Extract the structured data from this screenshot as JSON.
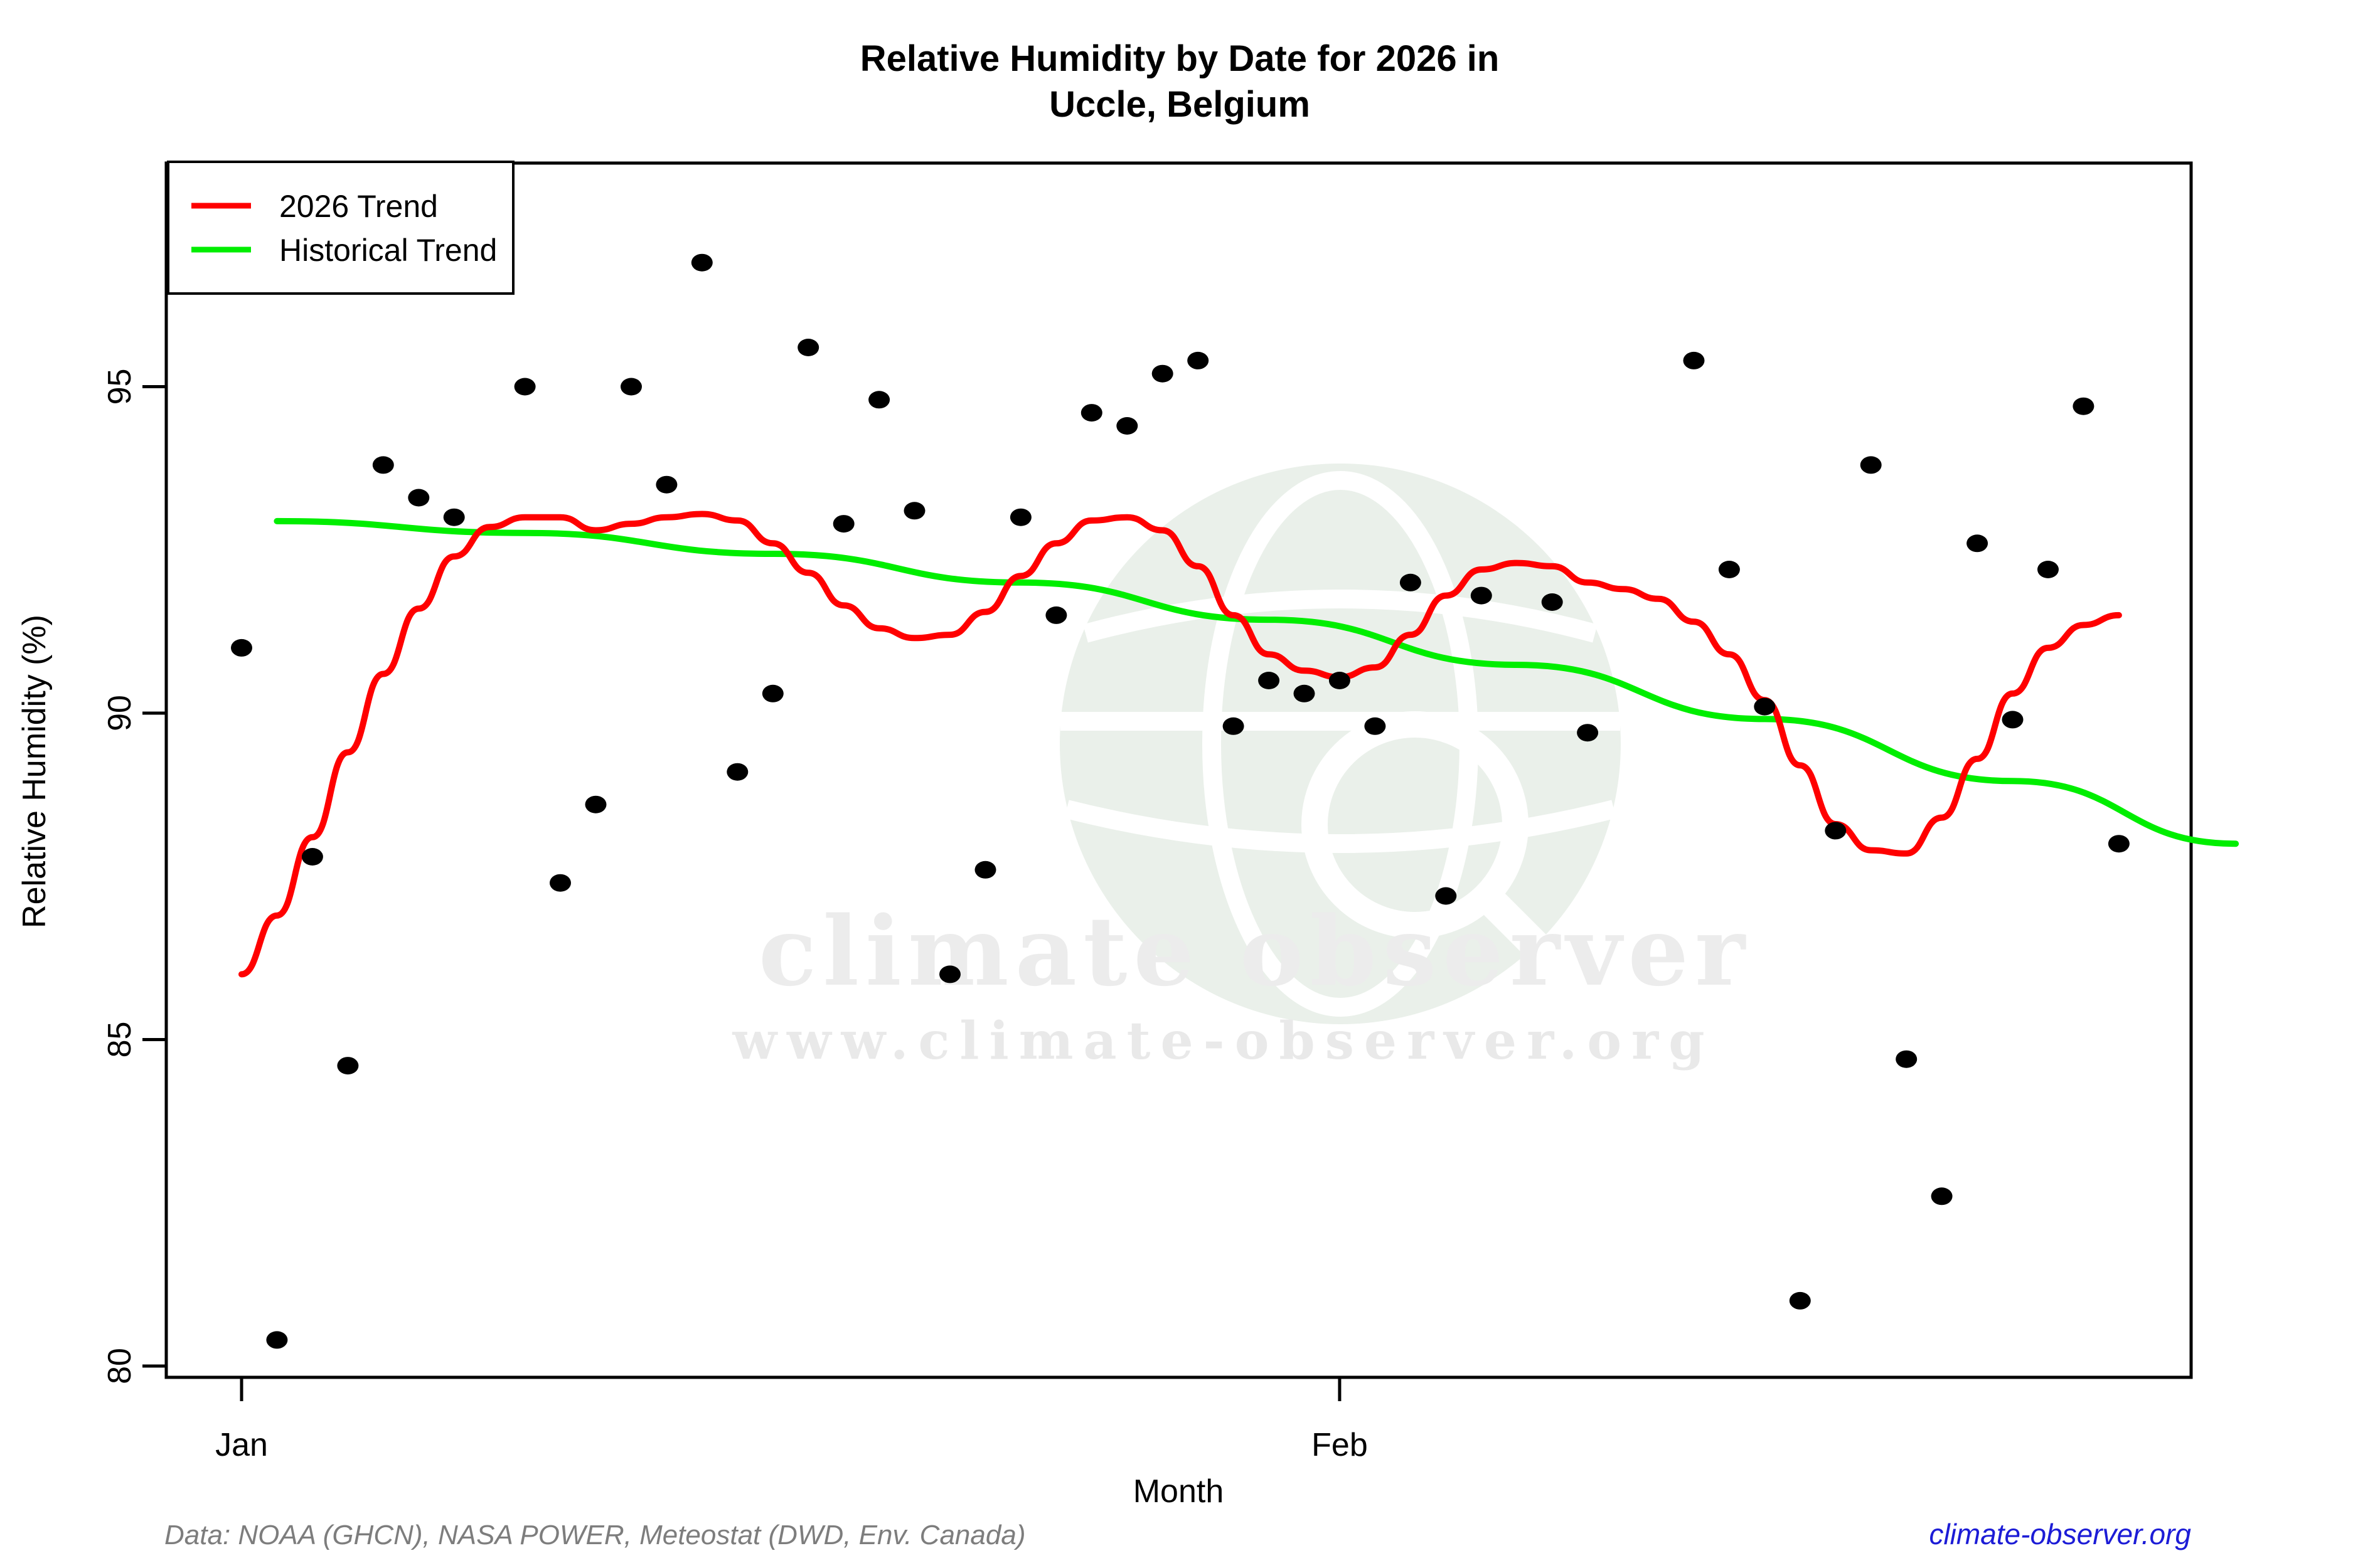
{
  "title": {
    "line1": "Relative Humidity by Date for 2026 in",
    "line2": "Uccle, Belgium"
  },
  "legend": {
    "items": [
      {
        "label": "2026 Trend",
        "color": "#ff0000"
      },
      {
        "label": "Historical Trend",
        "color": "#00ee00"
      }
    ]
  },
  "watermark": {
    "big_text": "climate observer",
    "small_text": "www.climate-observer.org",
    "globe_icon": "globe-magnifier-icon"
  },
  "footer": {
    "data_source": "Data: NOAA (GHCN), NASA POWER, Meteostat (DWD, Env. Canada)",
    "site_link": "climate-observer.org"
  },
  "chart_data": {
    "type": "scatter",
    "title": "Relative Humidity by Date for 2026 in Uccle, Belgium",
    "xlabel": "Month",
    "ylabel": "Relative Humidity (%)",
    "x_ticks": [
      {
        "label": "Jan",
        "day": 1
      },
      {
        "label": "Feb",
        "day": 32
      }
    ],
    "y_ticks": [
      80,
      85,
      90,
      95
    ],
    "ylim": [
      79.8,
      98.4
    ],
    "xlim_days": [
      -1.25,
      57.3
    ],
    "grid": false,
    "legend_position": "topleft",
    "point_color": "#000000",
    "series": [
      {
        "name": "Daily Relative Humidity 2026",
        "points": [
          {
            "day": 1,
            "date": "Jan 1",
            "value": 91.0
          },
          {
            "day": 2,
            "date": "Jan 2",
            "value": 80.4
          },
          {
            "day": 3,
            "date": "Jan 3",
            "value": 87.8
          },
          {
            "day": 4,
            "date": "Jan 4",
            "value": 84.6
          },
          {
            "day": 5,
            "date": "Jan 5",
            "value": 93.8
          },
          {
            "day": 6,
            "date": "Jan 6",
            "value": 93.3
          },
          {
            "day": 7,
            "date": "Jan 7",
            "value": 93.0
          },
          {
            "day": 9,
            "date": "Jan 9",
            "value": 95.0
          },
          {
            "day": 10,
            "date": "Jan 10",
            "value": 87.4
          },
          {
            "day": 11,
            "date": "Jan 11",
            "value": 88.6
          },
          {
            "day": 12,
            "date": "Jan 12",
            "value": 95.0
          },
          {
            "day": 13,
            "date": "Jan 13",
            "value": 93.5
          },
          {
            "day": 14,
            "date": "Jan 14",
            "value": 96.9
          },
          {
            "day": 15,
            "date": "Jan 15",
            "value": 89.1
          },
          {
            "day": 16,
            "date": "Jan 16",
            "value": 90.3
          },
          {
            "day": 17,
            "date": "Jan 17",
            "value": 95.6
          },
          {
            "day": 18,
            "date": "Jan 18",
            "value": 92.9
          },
          {
            "day": 19,
            "date": "Jan 19",
            "value": 94.8
          },
          {
            "day": 20,
            "date": "Jan 20",
            "value": 93.1
          },
          {
            "day": 21,
            "date": "Jan 21",
            "value": 86.0
          },
          {
            "day": 22,
            "date": "Jan 22",
            "value": 87.6
          },
          {
            "day": 23,
            "date": "Jan 23",
            "value": 93.0
          },
          {
            "day": 24,
            "date": "Jan 24",
            "value": 91.5
          },
          {
            "day": 25,
            "date": "Jan 25",
            "value": 94.6
          },
          {
            "day": 26,
            "date": "Jan 26",
            "value": 94.4
          },
          {
            "day": 27,
            "date": "Jan 27",
            "value": 95.2
          },
          {
            "day": 28,
            "date": "Jan 28",
            "value": 95.4
          },
          {
            "day": 29,
            "date": "Jan 29",
            "value": 89.8
          },
          {
            "day": 30,
            "date": "Jan 30",
            "value": 90.5
          },
          {
            "day": 31,
            "date": "Jan 31",
            "value": 90.3
          },
          {
            "day": 32,
            "date": "Feb 1",
            "value": 90.5
          },
          {
            "day": 33,
            "date": "Feb 2",
            "value": 89.8
          },
          {
            "day": 34,
            "date": "Feb 3",
            "value": 92.0
          },
          {
            "day": 35,
            "date": "Feb 4",
            "value": 87.2
          },
          {
            "day": 36,
            "date": "Feb 5",
            "value": 91.8
          },
          {
            "day": 38,
            "date": "Feb 7",
            "value": 91.7
          },
          {
            "day": 39,
            "date": "Feb 8",
            "value": 89.7
          },
          {
            "day": 42,
            "date": "Feb 11",
            "value": 95.4
          },
          {
            "day": 43,
            "date": "Feb 12",
            "value": 92.2
          },
          {
            "day": 44,
            "date": "Feb 13",
            "value": 90.1
          },
          {
            "day": 45,
            "date": "Feb 14",
            "value": 81.0
          },
          {
            "day": 46,
            "date": "Feb 15",
            "value": 88.2
          },
          {
            "day": 47,
            "date": "Feb 16",
            "value": 93.8
          },
          {
            "day": 48,
            "date": "Feb 17",
            "value": 84.7
          },
          {
            "day": 49,
            "date": "Feb 18",
            "value": 82.6
          },
          {
            "day": 50,
            "date": "Feb 19",
            "value": 92.6
          },
          {
            "day": 51,
            "date": "Feb 20",
            "value": 89.9
          },
          {
            "day": 52,
            "date": "Feb 21",
            "value": 92.2
          },
          {
            "day": 53,
            "date": "Feb 22",
            "value": 94.7
          },
          {
            "day": 54,
            "date": "Feb 23",
            "value": 88.0
          }
        ]
      }
    ],
    "trend_2026": {
      "name": "2026 Trend",
      "color": "#ff0000",
      "points": [
        [
          1,
          86.0
        ],
        [
          2,
          86.9
        ],
        [
          3,
          88.1
        ],
        [
          4,
          89.4
        ],
        [
          5,
          90.6
        ],
        [
          6,
          91.6
        ],
        [
          7,
          92.4
        ],
        [
          8,
          92.85
        ],
        [
          9,
          93.0
        ],
        [
          10,
          93.0
        ],
        [
          11,
          92.8
        ],
        [
          12,
          92.9
        ],
        [
          13,
          93.0
        ],
        [
          14,
          93.05
        ],
        [
          15,
          92.95
        ],
        [
          16,
          92.6
        ],
        [
          17,
          92.15
        ],
        [
          18,
          91.65
        ],
        [
          19,
          91.3
        ],
        [
          20,
          91.15
        ],
        [
          21,
          91.2
        ],
        [
          22,
          91.55
        ],
        [
          23,
          92.1
        ],
        [
          24,
          92.6
        ],
        [
          25,
          92.95
        ],
        [
          26,
          93.0
        ],
        [
          27,
          92.8
        ],
        [
          28,
          92.25
        ],
        [
          29,
          91.5
        ],
        [
          30,
          90.9
        ],
        [
          31,
          90.65
        ],
        [
          32,
          90.55
        ],
        [
          33,
          90.7
        ],
        [
          34,
          91.2
        ],
        [
          35,
          91.8
        ],
        [
          36,
          92.2
        ],
        [
          37,
          92.3
        ],
        [
          38,
          92.25
        ],
        [
          39,
          92.0
        ],
        [
          40,
          91.9
        ],
        [
          41,
          91.75
        ],
        [
          42,
          91.4
        ],
        [
          43,
          90.9
        ],
        [
          44,
          90.2
        ],
        [
          45,
          89.2
        ],
        [
          46,
          88.3
        ],
        [
          47,
          87.9
        ],
        [
          48,
          87.85
        ],
        [
          49,
          88.4
        ],
        [
          50,
          89.3
        ],
        [
          51,
          90.3
        ],
        [
          52,
          91.0
        ],
        [
          53,
          91.35
        ],
        [
          54,
          91.5
        ]
      ]
    },
    "historical_trend": {
      "name": "Historical Trend",
      "color": "#00ee00",
      "points": [
        [
          2,
          92.94
        ],
        [
          9,
          92.76
        ],
        [
          16,
          92.44
        ],
        [
          23,
          92.0
        ],
        [
          30,
          91.43
        ],
        [
          37,
          90.74
        ],
        [
          44,
          89.91
        ],
        [
          51,
          88.96
        ],
        [
          57.3,
          88.0
        ]
      ]
    }
  }
}
